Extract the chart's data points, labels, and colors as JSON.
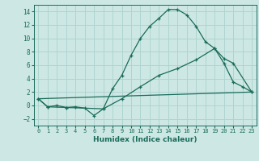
{
  "xlabel": "Humidex (Indice chaleur)",
  "background_color": "#cde8e4",
  "grid_color": "#afd4d0",
  "line_color": "#1a6b5a",
  "xlim": [
    -0.5,
    23.5
  ],
  "ylim": [
    -3.0,
    15.0
  ],
  "xticks": [
    0,
    1,
    2,
    3,
    4,
    5,
    6,
    7,
    8,
    9,
    10,
    11,
    12,
    13,
    14,
    15,
    16,
    17,
    18,
    19,
    20,
    21,
    22,
    23
  ],
  "yticks": [
    -2,
    0,
    2,
    4,
    6,
    8,
    10,
    12,
    14
  ],
  "series": [
    {
      "x": [
        0,
        1,
        2,
        3,
        4,
        5,
        6,
        7,
        8,
        9,
        10,
        11,
        12,
        13,
        14,
        15,
        16,
        17,
        18,
        19,
        20,
        21,
        22,
        23
      ],
      "y": [
        1.0,
        -0.2,
        0.0,
        -0.3,
        -0.2,
        -0.4,
        -1.5,
        -0.5,
        2.5,
        4.5,
        7.5,
        10.0,
        11.8,
        13.0,
        14.3,
        14.3,
        13.5,
        11.8,
        9.5,
        8.5,
        6.3,
        3.5,
        2.8,
        2.0
      ],
      "marker": true
    },
    {
      "x": [
        0,
        1,
        3,
        7,
        9,
        11,
        13,
        15,
        17,
        19,
        20,
        21,
        23
      ],
      "y": [
        1.0,
        -0.2,
        -0.3,
        -0.5,
        1.0,
        2.8,
        4.5,
        5.5,
        6.8,
        8.5,
        7.0,
        6.3,
        2.0
      ],
      "marker": true
    },
    {
      "x": [
        0,
        23
      ],
      "y": [
        1.0,
        2.0
      ],
      "marker": false
    }
  ]
}
